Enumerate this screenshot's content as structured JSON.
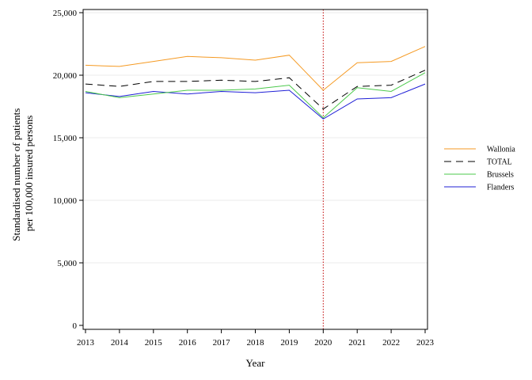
{
  "chart_data": {
    "type": "line",
    "title": "",
    "xlabel": "Year",
    "ylabel_lines": [
      "Standardised number of patients",
      "per 100,000 insured persons"
    ],
    "x": [
      2013,
      2014,
      2015,
      2016,
      2017,
      2018,
      2019,
      2020,
      2021,
      2022,
      2023
    ],
    "x_tick_labels": [
      "2013",
      "2014",
      "2015",
      "2016",
      "2017",
      "2018",
      "2019",
      "2020",
      "2021",
      "2022",
      "2023"
    ],
    "ylim": [
      0,
      25000
    ],
    "y_ticks": [
      0,
      5000,
      10000,
      15000,
      20000,
      25000
    ],
    "y_tick_labels": [
      "0",
      "5,000",
      "10,000",
      "15,000",
      "20,000",
      "25,000"
    ],
    "grid": "horizontal",
    "reference_line": {
      "x": 2020,
      "color": "#c00000",
      "style": "dotted"
    },
    "legend_position": "right",
    "series": [
      {
        "name": "Wallonia",
        "color": "#f59a23",
        "dash": "solid",
        "values": [
          20800,
          20700,
          21100,
          21500,
          21400,
          21200,
          21600,
          18800,
          21000,
          21100,
          22300
        ]
      },
      {
        "name": "TOTAL",
        "color": "#000000",
        "dash": "dashed",
        "values": [
          19300,
          19100,
          19500,
          19500,
          19600,
          19500,
          19800,
          17300,
          19100,
          19200,
          20400
        ]
      },
      {
        "name": "Brussels",
        "color": "#4bc94b",
        "dash": "solid",
        "values": [
          18700,
          18200,
          18500,
          18800,
          18800,
          18900,
          19200,
          16600,
          19000,
          18700,
          20200
        ]
      },
      {
        "name": "Flanders",
        "color": "#1f1fd6",
        "dash": "solid",
        "values": [
          18600,
          18300,
          18700,
          18500,
          18700,
          18600,
          18800,
          16500,
          18100,
          18200,
          19300
        ]
      }
    ]
  }
}
